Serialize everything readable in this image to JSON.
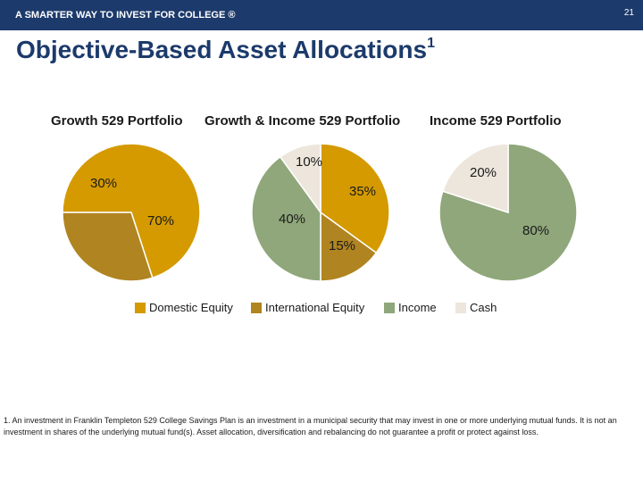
{
  "header": {
    "brand": "A SMARTER WAY TO INVEST FOR COLLEGE ®",
    "page_number": "21"
  },
  "title": {
    "text": "Objective-Based Asset Allocations",
    "superscript": "1"
  },
  "colors": {
    "header_bg": "#1c3a6b",
    "title": "#1c3a6b",
    "domestic_equity": "#d49a00",
    "international_equity": "#b08420",
    "income": "#8fa77a",
    "cash": "#ede6dc"
  },
  "chart_data": [
    {
      "type": "pie",
      "title": "Growth 529 Portfolio",
      "slices": [
        {
          "category": "Domestic Equity",
          "value": 70,
          "label": "70%"
        },
        {
          "category": "International Equity",
          "value": 30,
          "label": "30%"
        }
      ]
    },
    {
      "type": "pie",
      "title": "Growth & Income 529 Portfolio",
      "slices": [
        {
          "category": "Domestic Equity",
          "value": 35,
          "label": "35%"
        },
        {
          "category": "International Equity",
          "value": 15,
          "label": "15%"
        },
        {
          "category": "Income",
          "value": 40,
          "label": "40%"
        },
        {
          "category": "Cash",
          "value": 10,
          "label": "10%"
        }
      ]
    },
    {
      "type": "pie",
      "title": "Income 529 Portfolio",
      "slices": [
        {
          "category": "Income",
          "value": 80,
          "label": "80%"
        },
        {
          "category": "Cash",
          "value": 20,
          "label": "20%"
        }
      ]
    }
  ],
  "legend": [
    {
      "label": "Domestic Equity",
      "color": "#d49a00"
    },
    {
      "label": "International Equity",
      "color": "#b08420"
    },
    {
      "label": "Income",
      "color": "#8fa77a"
    },
    {
      "label": "Cash",
      "color": "#ede6dc"
    }
  ],
  "footnote": "1. An investment in Franklin Templeton 529 College Savings Plan is an investment in a municipal security that may invest in one or more underlying mutual funds. It is not an investment in shares of the underlying mutual fund(s). Asset allocation, diversification and rebalancing do not guarantee a profit or protect against loss."
}
